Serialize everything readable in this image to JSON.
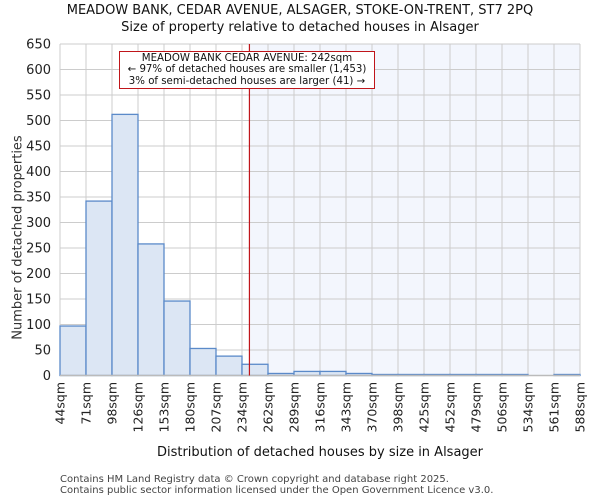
{
  "header": {
    "title": "MEADOW BANK, CEDAR AVENUE, ALSAGER, STOKE-ON-TRENT, ST7 2PQ",
    "subtitle": "Size of property relative to detached houses in Alsager"
  },
  "annotation": {
    "line1": "MEADOW BANK CEDAR AVENUE: 242sqm",
    "line2": "← 97% of detached houses are smaller (1,453)",
    "line3": "3% of semi-detached houses are larger (41) →"
  },
  "axes": {
    "xlabel": "Distribution of detached houses by size in Alsager",
    "ylabel": "Number of detached properties"
  },
  "footer": {
    "line1": "Contains HM Land Registry data © Crown copyright and database right 2025.",
    "line2": "Contains public sector information licensed under the Open Government Licence v3.0."
  },
  "colors": {
    "bar_fill": "#dce6f4",
    "bar_stroke": "#5b8ac9",
    "highlight_bg": "#f3f6fd",
    "marker": "#c0151a",
    "grid": "#cccccc"
  },
  "chart_data": {
    "type": "bar",
    "title": "MEADOW BANK, CEDAR AVENUE, ALSAGER, STOKE-ON-TRENT, ST7 2PQ",
    "subtitle": "Size of property relative to detached houses in Alsager",
    "xlabel": "Distribution of detached houses by size in Alsager",
    "ylabel": "Number of detached properties",
    "bin_edges": [
      "44sqm",
      "71sqm",
      "98sqm",
      "126sqm",
      "153sqm",
      "180sqm",
      "207sqm",
      "234sqm",
      "262sqm",
      "289sqm",
      "316sqm",
      "343sqm",
      "370sqm",
      "398sqm",
      "425sqm",
      "452sqm",
      "479sqm",
      "506sqm",
      "534sqm",
      "561sqm",
      "588sqm"
    ],
    "categories": [
      "44sqm",
      "71sqm",
      "98sqm",
      "126sqm",
      "153sqm",
      "180sqm",
      "207sqm",
      "234sqm",
      "262sqm",
      "289sqm",
      "316sqm",
      "343sqm",
      "370sqm",
      "398sqm",
      "425sqm",
      "452sqm",
      "479sqm",
      "506sqm",
      "534sqm",
      "561sqm"
    ],
    "values": [
      97,
      342,
      512,
      258,
      146,
      53,
      38,
      22,
      4,
      8,
      8,
      4,
      2,
      2,
      2,
      2,
      2,
      2,
      0,
      2
    ],
    "ylim": [
      0,
      650
    ],
    "yticks": [
      0,
      50,
      100,
      150,
      200,
      250,
      300,
      350,
      400,
      450,
      500,
      550,
      600,
      650
    ],
    "grid": true,
    "marker": {
      "value_sqm": 242,
      "label": "MEADOW BANK CEDAR AVENUE: 242sqm"
    }
  }
}
